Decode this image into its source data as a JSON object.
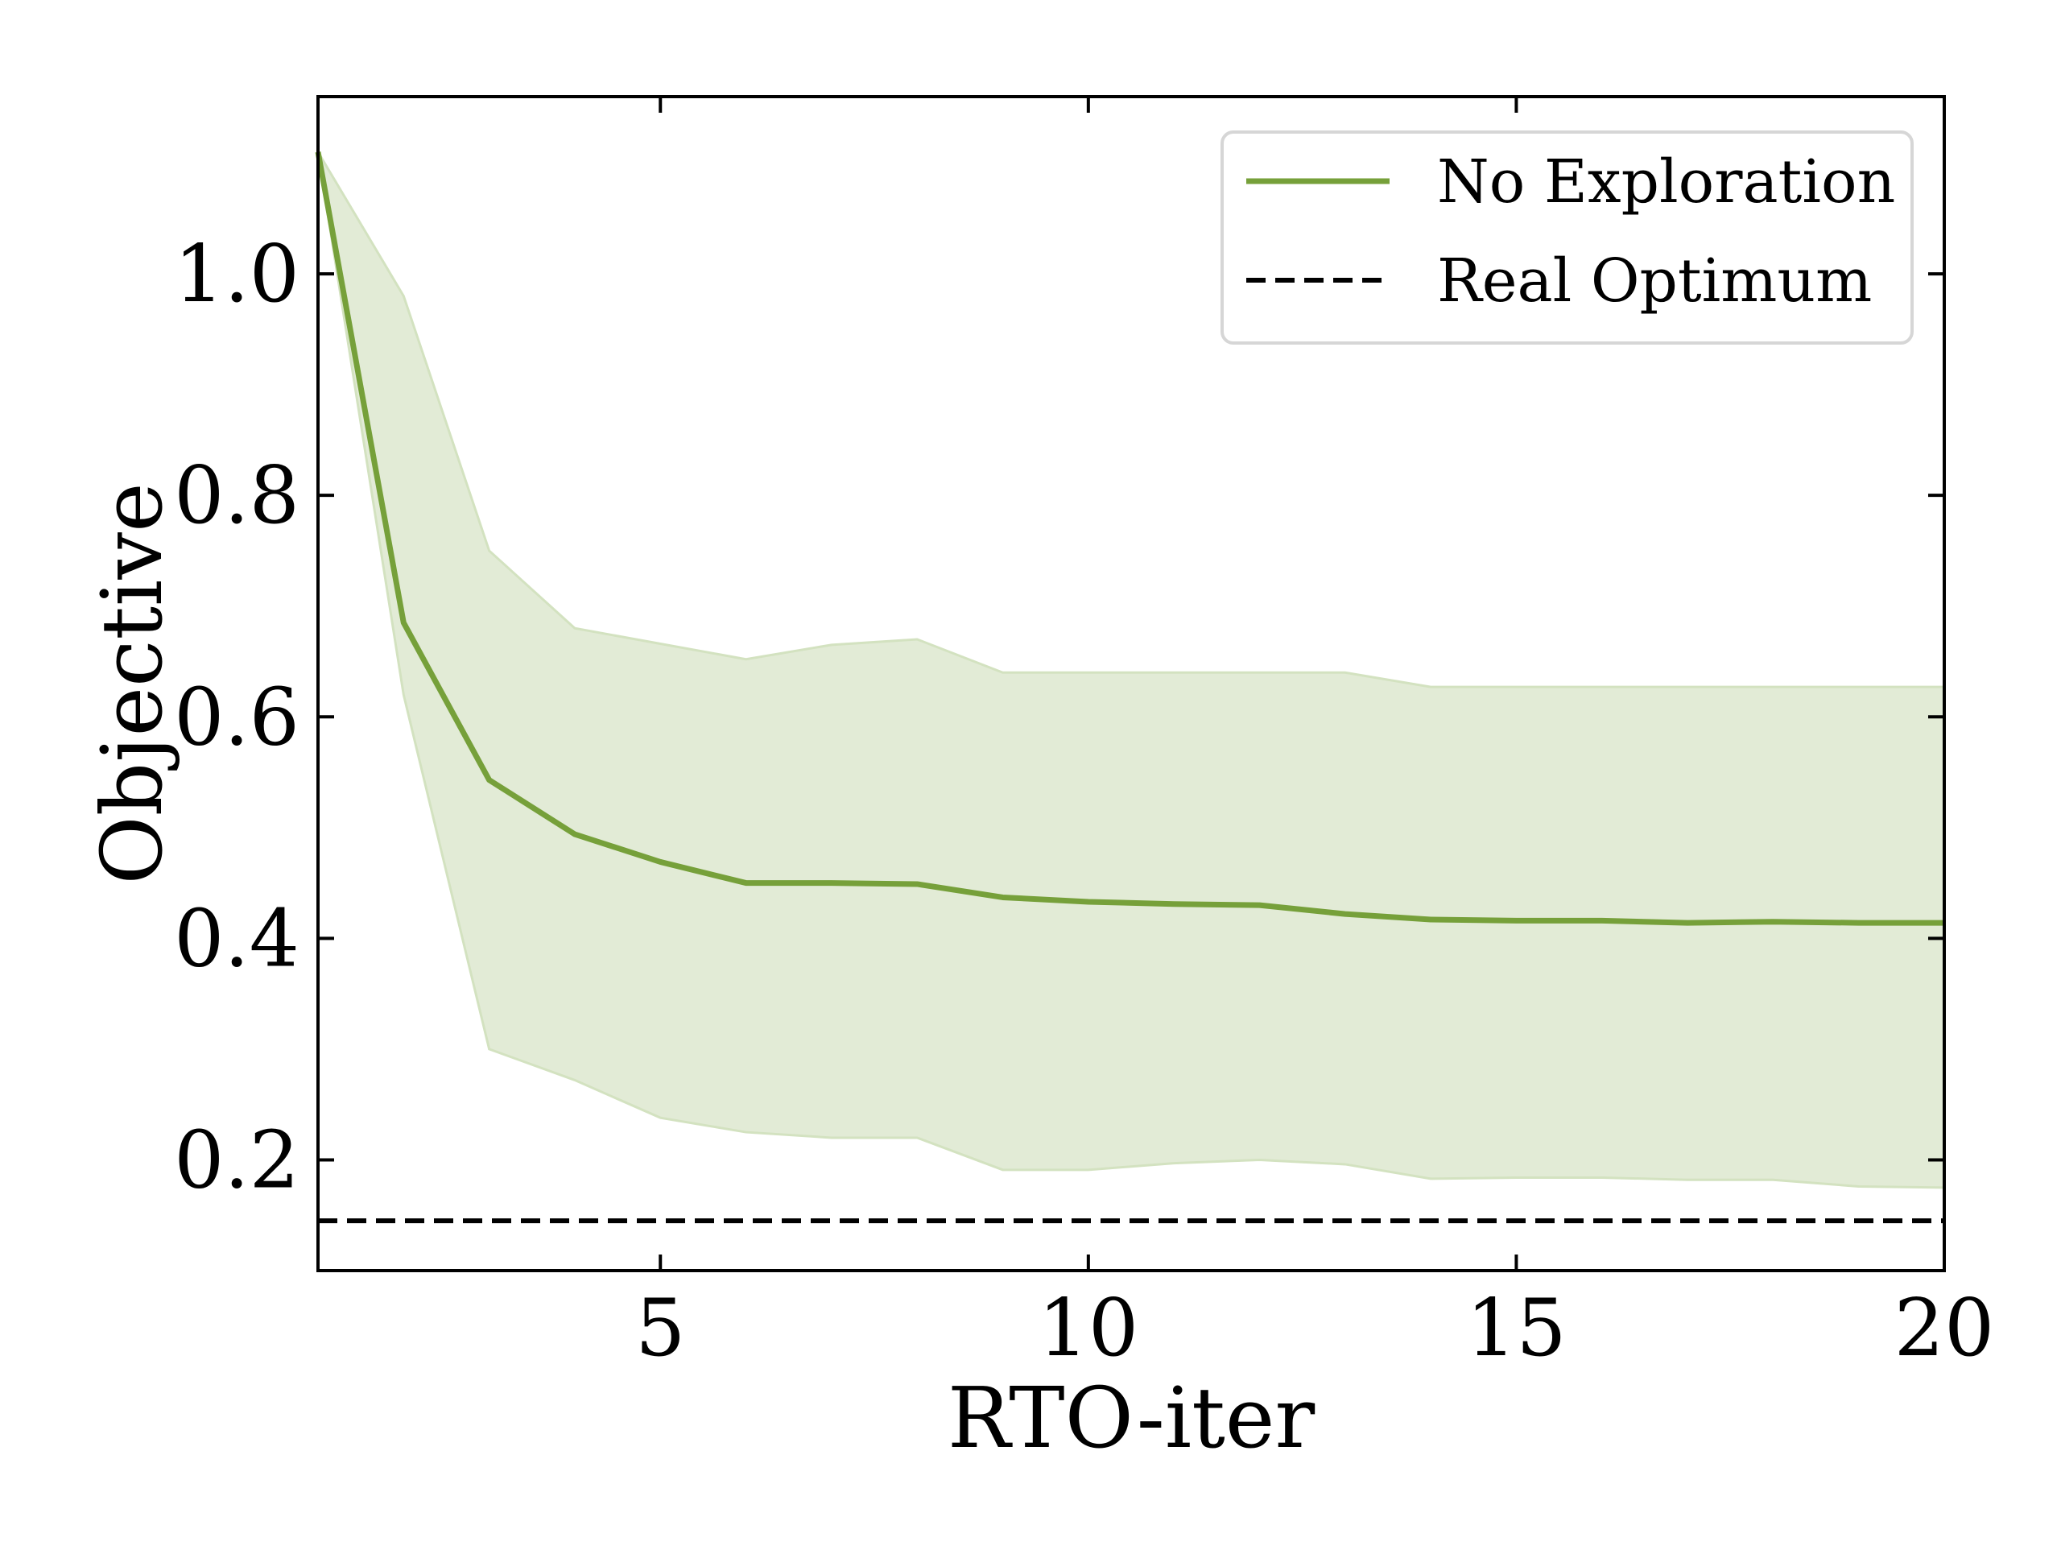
{
  "chart_data": {
    "type": "line",
    "xlabel": "RTO-iter",
    "ylabel": "Objective",
    "xlim": [
      1,
      20
    ],
    "ylim": [
      0.1,
      1.16
    ],
    "xticks": [
      5,
      10,
      15,
      20
    ],
    "xtick_labels": [
      "5",
      "10",
      "15",
      "20"
    ],
    "yticks": [
      0.2,
      0.4,
      0.6,
      0.8,
      1.0
    ],
    "ytick_labels": [
      "0.2",
      "0.4",
      "0.6",
      "0.8",
      "1.0"
    ],
    "grid": false,
    "legend_position": "top-right",
    "series": [
      {
        "name": "No Exploration",
        "style": "solid",
        "color": "#76a03a",
        "x": [
          1,
          2,
          3,
          4,
          5,
          6,
          7,
          8,
          9,
          10,
          11,
          12,
          13,
          14,
          15,
          16,
          17,
          18,
          19,
          20
        ],
        "values": [
          1.11,
          0.685,
          0.543,
          0.494,
          0.469,
          0.45,
          0.45,
          0.449,
          0.437,
          0.433,
          0.431,
          0.43,
          0.422,
          0.417,
          0.416,
          0.416,
          0.414,
          0.415,
          0.414,
          0.414
        ],
        "band_upper": [
          1.11,
          0.98,
          0.75,
          0.68,
          0.666,
          0.652,
          0.665,
          0.67,
          0.64,
          0.64,
          0.64,
          0.64,
          0.64,
          0.627,
          0.627,
          0.627,
          0.627,
          0.627,
          0.627,
          0.627
        ],
        "band_lower": [
          1.11,
          0.62,
          0.3,
          0.272,
          0.238,
          0.225,
          0.22,
          0.22,
          0.191,
          0.191,
          0.197,
          0.2,
          0.196,
          0.183,
          0.184,
          0.184,
          0.182,
          0.182,
          0.176,
          0.175
        ],
        "band_color": "#e2ebd6"
      },
      {
        "name": "Real Optimum",
        "style": "dashed",
        "color": "#000000",
        "x": [
          1,
          20
        ],
        "values": [
          0.145,
          0.145
        ]
      }
    ]
  }
}
